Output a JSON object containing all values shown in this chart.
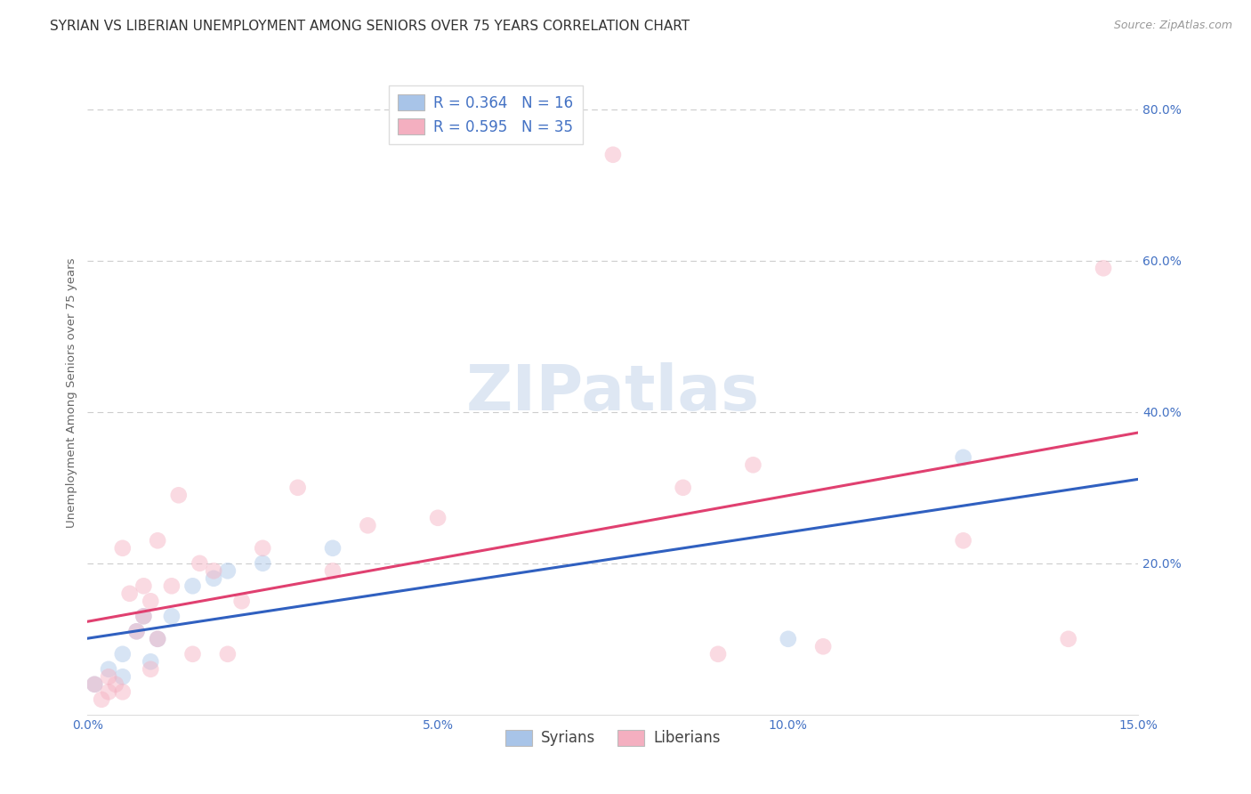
{
  "title": "SYRIAN VS LIBERIAN UNEMPLOYMENT AMONG SENIORS OVER 75 YEARS CORRELATION CHART",
  "source": "Source: ZipAtlas.com",
  "ylabel_label": "Unemployment Among Seniors over 75 years",
  "xlim": [
    0.0,
    15.0
  ],
  "ylim": [
    0.0,
    85.0
  ],
  "ytick_values": [
    20.0,
    40.0,
    60.0,
    80.0
  ],
  "ytick_labels": [
    "20.0%",
    "40.0%",
    "60.0%",
    "80.0%"
  ],
  "xtick_values": [
    0.0,
    5.0,
    10.0,
    15.0
  ],
  "xtick_labels": [
    "0.0%",
    "5.0%",
    "10.0%",
    "15.0%"
  ],
  "legend_r_labels": [
    "R = 0.364   N = 16",
    "R = 0.595   N = 35"
  ],
  "legend_bottom": [
    "Syrians",
    "Liberians"
  ],
  "syrians_color": "#a8c4e8",
  "liberians_color": "#f4afc0",
  "syrians_line_color": "#3060c0",
  "liberians_line_color": "#e04070",
  "watermark_text": "ZIPatlas",
  "watermark_color": "#c8d8ec",
  "syrians_x": [
    0.1,
    0.3,
    0.5,
    0.5,
    0.7,
    0.8,
    0.9,
    1.0,
    1.2,
    1.5,
    1.8,
    2.0,
    2.5,
    3.5,
    10.0,
    12.5
  ],
  "syrians_y": [
    4,
    6,
    5,
    8,
    11,
    13,
    7,
    10,
    13,
    17,
    18,
    19,
    20,
    22,
    10,
    34
  ],
  "liberians_x": [
    0.1,
    0.2,
    0.3,
    0.3,
    0.4,
    0.5,
    0.5,
    0.6,
    0.7,
    0.8,
    0.8,
    0.9,
    0.9,
    1.0,
    1.0,
    1.2,
    1.3,
    1.5,
    1.6,
    1.8,
    2.0,
    2.2,
    2.5,
    3.0,
    3.5,
    4.0,
    5.0,
    7.5,
    9.0,
    9.5,
    10.5,
    12.5,
    14.0,
    14.5,
    8.5
  ],
  "liberians_y": [
    4,
    2,
    5,
    3,
    4,
    22,
    3,
    16,
    11,
    13,
    17,
    15,
    6,
    10,
    23,
    17,
    29,
    8,
    20,
    19,
    8,
    15,
    22,
    30,
    19,
    25,
    26,
    74,
    8,
    33,
    9,
    23,
    10,
    59,
    30
  ],
  "background_color": "#ffffff",
  "grid_color": "#cccccc",
  "title_fontsize": 11,
  "axis_label_fontsize": 9.5,
  "tick_fontsize": 10,
  "tick_color": "#4472c4",
  "marker_size": 180,
  "marker_alpha": 0.45
}
